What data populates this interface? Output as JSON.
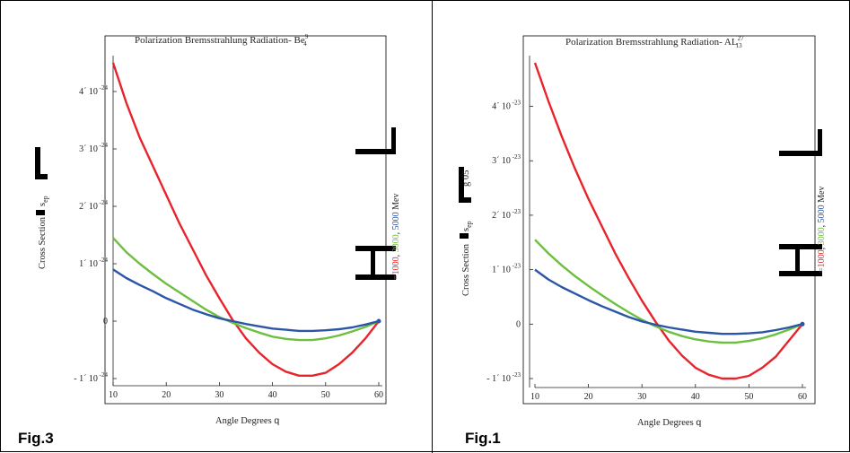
{
  "chart_data": [
    {
      "type": "line",
      "figure_label": "Fig.3",
      "title": "Polarization Bremsstrahlung Radiation- Be",
      "title_sup": "9",
      "title_sub": "4",
      "xlabel": "Angle Degrees",
      "xlabel_symbol": "q",
      "ylabel_text": "Cross Section",
      "ylabel_symbol": "s",
      "ylabel_sub": "ep",
      "xlim": [
        10,
        60
      ],
      "ylim": [
        -1e-24,
        4.5e-24
      ],
      "x_ticks": [
        "10",
        "20",
        "30",
        "40",
        "50",
        "60"
      ],
      "y_ticks": [
        {
          "base": "- 1´ 10",
          "exp": "-24"
        },
        {
          "base": "0",
          "exp": ""
        },
        {
          "base": "1´ 10",
          "exp": "-24"
        },
        {
          "base": "2´ 10",
          "exp": "-24"
        },
        {
          "base": "3´ 10",
          "exp": "-24"
        },
        {
          "base": "4´ 10",
          "exp": "-24"
        }
      ],
      "legend": {
        "e1": "=1000",
        "e2": "3000",
        "e3": "5000",
        "unit": "Mev",
        "sep": ","
      },
      "colors": [
        "#e8232b",
        "#6cbf3f",
        "#2b56a6"
      ],
      "x": [
        10,
        12.5,
        15,
        17.5,
        20,
        22.5,
        25,
        27.5,
        30,
        32.5,
        35,
        37.5,
        40,
        42.5,
        45,
        47.5,
        50,
        52.5,
        55,
        57.5,
        60
      ],
      "series": [
        {
          "values": [
            4.5e-24,
            3.8e-24,
            3.2e-24,
            2.7e-24,
            2.2e-24,
            1.7e-24,
            1.25e-24,
            8e-25,
            4e-25,
            2e-26,
            -3e-25,
            -5.5e-25,
            -7.5e-25,
            -8.8e-25,
            -9.5e-25,
            -9.5e-25,
            -9e-25,
            -7.5e-25,
            -5.5e-25,
            -3e-25,
            0
          ]
        },
        {
          "values": [
            1.45e-24,
            1.2e-24,
            1e-24,
            8.2e-25,
            6.5e-25,
            5e-25,
            3.5e-25,
            2e-25,
            7e-26,
            -3e-26,
            -1.2e-25,
            -2e-25,
            -2.7e-25,
            -3.1e-25,
            -3.3e-25,
            -3.3e-25,
            -3e-25,
            -2.5e-25,
            -1.8e-25,
            -1e-25,
            0
          ]
        },
        {
          "values": [
            9e-25,
            7.5e-25,
            6.3e-25,
            5.2e-25,
            4e-25,
            3e-25,
            2e-25,
            1.2e-25,
            5e-26,
            0,
            -5e-26,
            -9e-26,
            -1.3e-25,
            -1.5e-25,
            -1.7e-25,
            -1.7e-25,
            -1.6e-25,
            -1.4e-25,
            -1.1e-25,
            -6e-26,
            0
          ]
        }
      ]
    },
    {
      "type": "line",
      "figure_label": "Fig.1",
      "title": "Polarization Bremsstrahlung Radiation- AL",
      "title_sup": "27",
      "title_sub": "13",
      "xlabel": "Angle Degrees",
      "xlabel_symbol": "q",
      "ylabel_text": "Cross Section",
      "ylabel_symbol": "s",
      "ylabel_sub": "ep",
      "ylabel_extra": "g 05",
      "xlim": [
        10,
        60
      ],
      "ylim": [
        -1e-23,
        4.8e-23
      ],
      "x_ticks": [
        "10",
        "20",
        "30",
        "40",
        "50",
        "60"
      ],
      "y_ticks": [
        {
          "base": "- 1´ 10",
          "exp": "-23"
        },
        {
          "base": "0",
          "exp": ""
        },
        {
          "base": "1´ 10",
          "exp": "-23"
        },
        {
          "base": "2´ 10",
          "exp": "-23"
        },
        {
          "base": "3´ 10",
          "exp": "-23"
        },
        {
          "base": "4´ 10",
          "exp": "-23"
        }
      ],
      "legend": {
        "e1": "=1000",
        "e2": "3000",
        "e3": "5000",
        "unit": "Mev",
        "sep": ","
      },
      "colors": [
        "#e8232b",
        "#6cbf3f",
        "#2b56a6"
      ],
      "x": [
        10,
        12.5,
        15,
        17.5,
        20,
        22.5,
        25,
        27.5,
        30,
        32.5,
        35,
        37.5,
        40,
        42.5,
        45,
        47.5,
        50,
        52.5,
        55,
        57.5,
        60
      ],
      "series": [
        {
          "values": [
            4.8e-23,
            4.1e-23,
            3.45e-23,
            2.85e-23,
            2.3e-23,
            1.8e-23,
            1.3e-23,
            8.5e-24,
            4.3e-24,
            5e-25,
            -3e-24,
            -5.8e-24,
            -8e-24,
            -9.3e-24,
            -1e-23,
            -1e-23,
            -9.5e-24,
            -8e-24,
            -6e-24,
            -3e-24,
            0
          ]
        },
        {
          "values": [
            1.55e-23,
            1.3e-23,
            1.08e-23,
            8.8e-24,
            7e-24,
            5.3e-24,
            3.7e-24,
            2.2e-24,
            8e-25,
            -4e-25,
            -1.4e-24,
            -2.2e-24,
            -2.8e-24,
            -3.2e-24,
            -3.4e-24,
            -3.4e-24,
            -3.1e-24,
            -2.6e-24,
            -1.9e-24,
            -1e-24,
            0
          ]
        },
        {
          "values": [
            1e-23,
            8.2e-24,
            6.8e-24,
            5.6e-24,
            4.4e-24,
            3.3e-24,
            2.3e-24,
            1.3e-24,
            5e-25,
            -1e-25,
            -6e-25,
            -1e-24,
            -1.4e-24,
            -1.6e-24,
            -1.8e-24,
            -1.8e-24,
            -1.7e-24,
            -1.5e-24,
            -1.1e-24,
            -6e-25,
            0
          ]
        }
      ]
    }
  ]
}
